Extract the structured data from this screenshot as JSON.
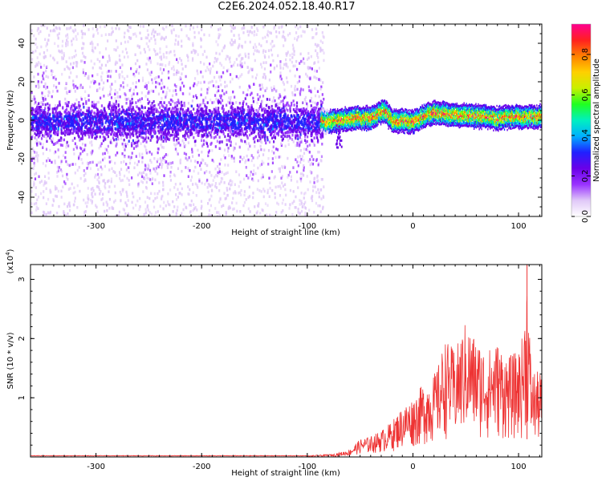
{
  "title": "C2E6.2024.052.18.40.R17",
  "chart_data": [
    {
      "type": "heatmap",
      "xlabel": "Height of straight line (km)",
      "ylabel": "Frequency (Hz)",
      "xlim": [
        -362,
        122
      ],
      "ylim": [
        -50,
        50
      ],
      "xticks": [
        -300,
        -200,
        -100,
        0,
        100
      ],
      "xtick_labels": [
        "-300",
        "-200",
        "-100",
        "0",
        "100"
      ],
      "yticks": [
        -40,
        -20,
        0,
        20,
        40
      ],
      "ytick_labels": [
        "-40",
        "-20",
        "0",
        "20",
        "40"
      ],
      "noise_region_x": [
        -362,
        -85
      ],
      "signal_region_x": [
        -88,
        122
      ],
      "signal_center_hz": [
        [
          -88,
          0
        ],
        [
          -80,
          -1
        ],
        [
          -60,
          1
        ],
        [
          -40,
          1
        ],
        [
          -28,
          5
        ],
        [
          -20,
          0
        ],
        [
          0,
          -1
        ],
        [
          10,
          2
        ],
        [
          20,
          4
        ],
        [
          35,
          3
        ],
        [
          60,
          2
        ],
        [
          80,
          1
        ],
        [
          100,
          2
        ],
        [
          122,
          2
        ]
      ],
      "colorbar": {
        "label": "Normalized spectral amplitude",
        "range": [
          0,
          0.95
        ],
        "ticks": [
          0.0,
          0.2,
          0.4,
          0.6,
          0.8
        ],
        "tick_labels": [
          "0.0",
          "0.2",
          "0.4",
          "0.6",
          "0.8"
        ],
        "colors": [
          "#ffffff",
          "#e0c8f8",
          "#9933ff",
          "#6a00e8",
          "#2020ff",
          "#00b0ff",
          "#00f0c0",
          "#20ff20",
          "#c8f000",
          "#ffd000",
          "#ff8000",
          "#ff2020",
          "#ff0090"
        ]
      }
    },
    {
      "type": "line",
      "xlabel": "Height of straight line (km)",
      "ylabel": "SNR (10 * v/v)",
      "yscale_label": "(x10",
      "yscale_exp": "4",
      "yscale_close": ")",
      "xlim": [
        -362,
        122
      ],
      "ylim": [
        0,
        3.25
      ],
      "xticks": [
        -300,
        -200,
        -100,
        0,
        100
      ],
      "xtick_labels": [
        "-300",
        "-200",
        "-100",
        "0",
        "100"
      ],
      "yticks": [
        1,
        2,
        3
      ],
      "ytick_labels": [
        "1",
        "2",
        "3"
      ],
      "series": [
        {
          "color": "#ee3333",
          "envelope": [
            [
              -362,
              0.02
            ],
            [
              -100,
              0.02
            ],
            [
              -75,
              0.05
            ],
            [
              -60,
              0.12
            ],
            [
              -50,
              0.3
            ],
            [
              -40,
              0.35
            ],
            [
              -30,
              0.45
            ],
            [
              -20,
              0.6
            ],
            [
              -10,
              0.85
            ],
            [
              0,
              1.0
            ],
            [
              10,
              1.25
            ],
            [
              20,
              1.4
            ],
            [
              25,
              1.6
            ],
            [
              30,
              2.0
            ],
            [
              40,
              1.8
            ],
            [
              50,
              2.3
            ],
            [
              60,
              2.0
            ],
            [
              70,
              1.8
            ],
            [
              80,
              1.95
            ],
            [
              90,
              1.7
            ],
            [
              100,
              1.8
            ],
            [
              105,
              2.15
            ],
            [
              108,
              3.25
            ],
            [
              112,
              1.5
            ],
            [
              122,
              1.4
            ]
          ]
        }
      ]
    }
  ]
}
